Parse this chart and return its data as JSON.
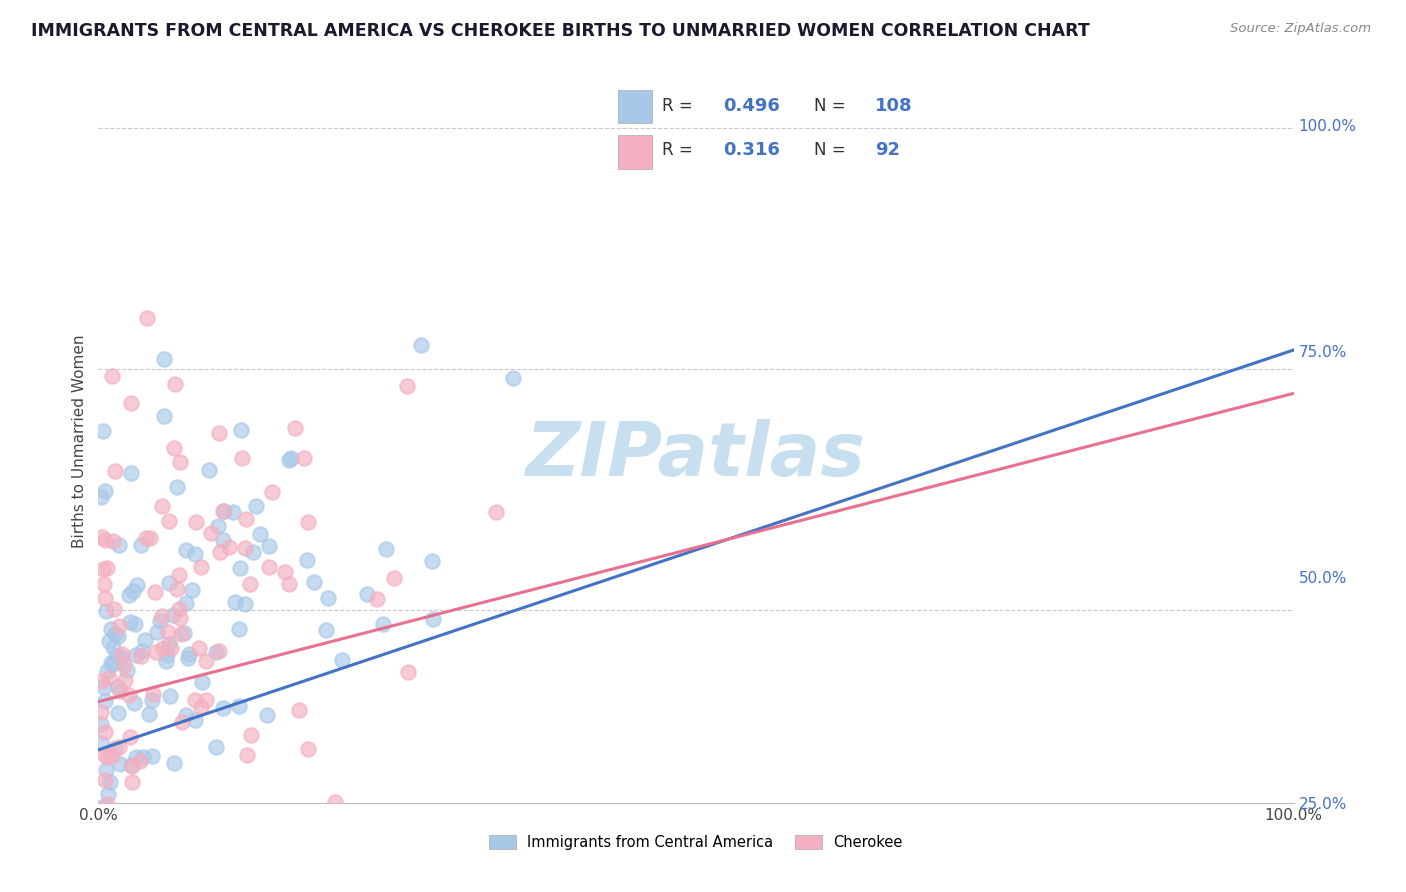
{
  "title": "IMMIGRANTS FROM CENTRAL AMERICA VS CHEROKEE BIRTHS TO UNMARRIED WOMEN CORRELATION CHART",
  "source_text": "Source: ZipAtlas.com",
  "ylabel": "Births to Unmarried Women",
  "blue_R": 0.496,
  "blue_N": 108,
  "pink_R": 0.316,
  "pink_N": 92,
  "watermark": "ZIPatlas",
  "xlim": [
    0.0,
    1.0
  ],
  "ylim": [
    0.3,
    1.05
  ],
  "ytick_positions": [
    0.25,
    0.5,
    0.75,
    1.0
  ],
  "ytick_labels": [
    "25.0%",
    "50.0%",
    "75.0%",
    "100.0%"
  ],
  "xtick_positions": [
    0.0,
    1.0
  ],
  "xtick_labels": [
    "0.0%",
    "100.0%"
  ],
  "blue_color": "#a8c8e8",
  "pink_color": "#f4afc0",
  "blue_line_color": "#4472c4",
  "pink_line_color": "#e87090",
  "grid_color": "#c8c8d0",
  "watermark_color": "#c8dff0",
  "right_tick_color": "#4472c4",
  "legend_text_color": "#333333",
  "legend_value_color": "#4472c4",
  "background_color": "#ffffff",
  "title_color": "#1a1a2e",
  "blue_line_start_y": 0.355,
  "blue_line_end_y": 0.77,
  "pink_line_start_y": 0.405,
  "pink_line_end_y": 0.725
}
